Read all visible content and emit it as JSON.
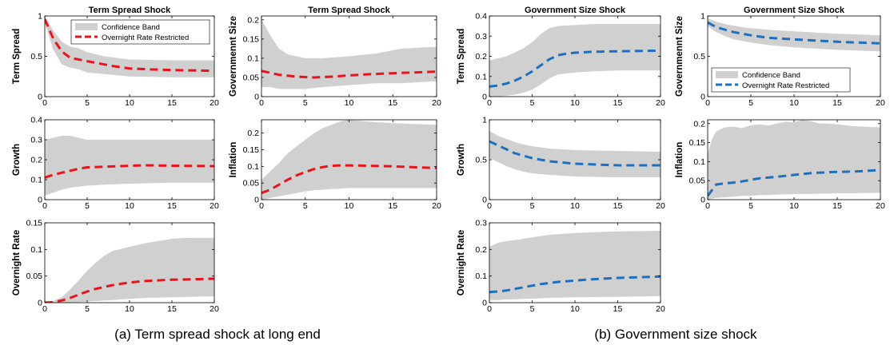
{
  "subcaptions": {
    "a": "(a)  Term spread shock at long end",
    "b": "(b)  Government size shock"
  },
  "colors": {
    "band": "#d0d0d0",
    "red": "#e8141b",
    "blue": "#1f6fbf",
    "axis": "#000000"
  },
  "chart_data": [
    {
      "id": "a1",
      "type": "area",
      "title": "Term Spread Shock",
      "xlabel": "",
      "ylabel": "Term Spread",
      "xlim": [
        0,
        20
      ],
      "ylim": [
        0,
        1
      ],
      "xticks": [
        0,
        5,
        10,
        15,
        20
      ],
      "yticks": [
        0,
        0.5,
        1
      ],
      "ytick_labels": [
        "0",
        "0.5",
        "1"
      ],
      "legend": {
        "placement": "top-right",
        "entries": [
          "Confidence Band",
          "Overnight Rate Restricted"
        ]
      },
      "series": [
        {
          "name": "Confidence Band",
          "kind": "band",
          "x": [
            0,
            1,
            2,
            3,
            4,
            5,
            7,
            10,
            15,
            20
          ],
          "upper": [
            1.0,
            0.82,
            0.68,
            0.62,
            0.6,
            0.55,
            0.5,
            0.46,
            0.45,
            0.45
          ],
          "lower": [
            0.92,
            0.58,
            0.4,
            0.36,
            0.34,
            0.3,
            0.28,
            0.25,
            0.24,
            0.24
          ]
        },
        {
          "name": "Overnight Rate Restricted",
          "kind": "line",
          "color": "red",
          "x": [
            0,
            1,
            2,
            3,
            4,
            5,
            6,
            8,
            10,
            12,
            15,
            20
          ],
          "y": [
            0.96,
            0.72,
            0.56,
            0.48,
            0.46,
            0.44,
            0.42,
            0.38,
            0.35,
            0.34,
            0.33,
            0.32
          ]
        }
      ]
    },
    {
      "id": "a2",
      "type": "area",
      "title": "Term Spread Shock",
      "xlabel": "",
      "ylabel": "Governmennt Size",
      "xlim": [
        0,
        20
      ],
      "ylim": [
        0,
        0.21
      ],
      "xticks": [
        0,
        5,
        10,
        15,
        20
      ],
      "yticks": [
        0,
        0.05,
        0.1,
        0.15,
        0.2
      ],
      "ytick_labels": [
        "0",
        "0.05",
        "0.1",
        "0.15",
        "0.2"
      ],
      "series": [
        {
          "name": "Confidence Band",
          "kind": "band",
          "x": [
            0,
            1,
            2,
            3,
            4,
            5,
            7,
            10,
            13,
            16,
            20
          ],
          "upper": [
            0.2,
            0.16,
            0.125,
            0.11,
            0.105,
            0.1,
            0.1,
            0.105,
            0.112,
            0.125,
            0.13
          ],
          "lower": [
            0.025,
            0.025,
            0.02,
            0.02,
            0.02,
            0.02,
            0.025,
            0.03,
            0.035,
            0.035,
            0.04
          ]
        },
        {
          "name": "Overnight Rate Restricted",
          "kind": "line",
          "color": "red",
          "x": [
            0,
            2,
            4,
            6,
            8,
            10,
            12,
            15,
            20
          ],
          "y": [
            0.067,
            0.057,
            0.052,
            0.05,
            0.052,
            0.055,
            0.058,
            0.061,
            0.065
          ]
        }
      ]
    },
    {
      "id": "a3",
      "type": "area",
      "title": "",
      "xlabel": "",
      "ylabel": "Growth",
      "xlim": [
        0,
        20
      ],
      "ylim": [
        0,
        0.4
      ],
      "xticks": [
        0,
        5,
        10,
        15,
        20
      ],
      "yticks": [
        0,
        0.1,
        0.2,
        0.3,
        0.4
      ],
      "ytick_labels": [
        "0",
        "0.1",
        "0.2",
        "0.3",
        "0.4"
      ],
      "series": [
        {
          "name": "Confidence Band",
          "kind": "band",
          "x": [
            0,
            1,
            2,
            3,
            4,
            5,
            7,
            10,
            15,
            20
          ],
          "upper": [
            0.3,
            0.31,
            0.32,
            0.32,
            0.31,
            0.3,
            0.3,
            0.3,
            0.3,
            0.3
          ],
          "lower": [
            0.02,
            0.035,
            0.05,
            0.06,
            0.065,
            0.07,
            0.075,
            0.08,
            0.085,
            0.085
          ]
        },
        {
          "name": "Overnight Rate Restricted",
          "kind": "line",
          "color": "red",
          "x": [
            0,
            1,
            2,
            3,
            4,
            5,
            7,
            10,
            12,
            15,
            20
          ],
          "y": [
            0.11,
            0.125,
            0.135,
            0.145,
            0.155,
            0.162,
            0.165,
            0.17,
            0.172,
            0.17,
            0.168
          ]
        }
      ]
    },
    {
      "id": "a4",
      "type": "area",
      "title": "",
      "xlabel": "",
      "ylabel": "Inflation",
      "xlim": [
        0,
        20
      ],
      "ylim": [
        0,
        0.24
      ],
      "xticks": [
        0,
        5,
        10,
        15,
        20
      ],
      "yticks": [
        0,
        0.05,
        0.1,
        0.15,
        0.2
      ],
      "ytick_labels": [
        "0",
        "0.05",
        "0.1",
        "0.15",
        "0.2"
      ],
      "series": [
        {
          "name": "Confidence Band",
          "kind": "band",
          "x": [
            0,
            1,
            2,
            3,
            4,
            5,
            6,
            7,
            8,
            9,
            10,
            12,
            15,
            20
          ],
          "upper": [
            0.06,
            0.085,
            0.11,
            0.14,
            0.16,
            0.18,
            0.2,
            0.215,
            0.225,
            0.235,
            0.24,
            0.235,
            0.23,
            0.225
          ],
          "lower": [
            0.0,
            0.005,
            0.01,
            0.015,
            0.02,
            0.025,
            0.028,
            0.03,
            0.032,
            0.033,
            0.035,
            0.035,
            0.035,
            0.035
          ]
        },
        {
          "name": "Overnight Rate Restricted",
          "kind": "line",
          "color": "red",
          "x": [
            0,
            1,
            2,
            3,
            4,
            5,
            6,
            7,
            8,
            9,
            10,
            12,
            15,
            20
          ],
          "y": [
            0.02,
            0.03,
            0.045,
            0.06,
            0.073,
            0.083,
            0.092,
            0.098,
            0.102,
            0.103,
            0.103,
            0.102,
            0.1,
            0.095
          ]
        }
      ]
    },
    {
      "id": "a5",
      "type": "area",
      "title": "",
      "xlabel": "",
      "ylabel": "Overnight Rate",
      "xlim": [
        0,
        20
      ],
      "ylim": [
        0,
        0.15
      ],
      "xticks": [
        0,
        5,
        10,
        15,
        20
      ],
      "yticks": [
        0,
        0.05,
        0.1,
        0.15
      ],
      "ytick_labels": [
        "0",
        "0.05",
        "0.1",
        "0.15"
      ],
      "series": [
        {
          "name": "Confidence Band",
          "kind": "band",
          "x": [
            0,
            1,
            2,
            3,
            4,
            5,
            6,
            7,
            8,
            10,
            12,
            15,
            17,
            20
          ],
          "upper": [
            0.0,
            0.003,
            0.01,
            0.025,
            0.042,
            0.06,
            0.075,
            0.088,
            0.097,
            0.105,
            0.112,
            0.12,
            0.122,
            0.122
          ],
          "lower": [
            0.0,
            0.0,
            0.0,
            0.0,
            0.001,
            0.002,
            0.003,
            0.004,
            0.005,
            0.007,
            0.009,
            0.01,
            0.011,
            0.012
          ]
        },
        {
          "name": "Overnight Rate Restricted",
          "kind": "line",
          "color": "red",
          "x": [
            0,
            1,
            2,
            3,
            4,
            5,
            6,
            8,
            10,
            12,
            15,
            20
          ],
          "y": [
            0.0,
            0.001,
            0.004,
            0.009,
            0.015,
            0.021,
            0.026,
            0.033,
            0.038,
            0.041,
            0.043,
            0.045
          ]
        }
      ]
    },
    {
      "id": "b1",
      "type": "area",
      "title": "Government Size Shock",
      "xlabel": "",
      "ylabel": "Term Spread",
      "xlim": [
        0,
        20
      ],
      "ylim": [
        0,
        0.4
      ],
      "xticks": [
        0,
        5,
        10,
        15,
        20
      ],
      "yticks": [
        0,
        0.1,
        0.2,
        0.3,
        0.4
      ],
      "ytick_labels": [
        "0",
        "0.1",
        "0.2",
        "0.3",
        "0.4"
      ],
      "series": [
        {
          "name": "Confidence Band",
          "kind": "band",
          "x": [
            0,
            1,
            2,
            3,
            4,
            5,
            6,
            7,
            8,
            10,
            12,
            15,
            20
          ],
          "upper": [
            0.18,
            0.19,
            0.2,
            0.22,
            0.24,
            0.27,
            0.31,
            0.34,
            0.35,
            0.355,
            0.36,
            0.36,
            0.36
          ],
          "lower": [
            0.0,
            0.0,
            0.005,
            0.01,
            0.02,
            0.035,
            0.06,
            0.09,
            0.11,
            0.12,
            0.125,
            0.13,
            0.13
          ]
        },
        {
          "name": "Overnight Rate Restricted",
          "kind": "line",
          "color": "blue",
          "x": [
            0,
            1,
            2,
            3,
            4,
            5,
            6,
            7,
            8,
            9,
            10,
            12,
            15,
            20
          ],
          "y": [
            0.05,
            0.055,
            0.065,
            0.08,
            0.1,
            0.125,
            0.155,
            0.185,
            0.205,
            0.213,
            0.218,
            0.222,
            0.225,
            0.228
          ]
        }
      ]
    },
    {
      "id": "b2",
      "type": "area",
      "title": "Government Size Shock",
      "xlabel": "",
      "ylabel": "Governmennt Size",
      "xlim": [
        0,
        20
      ],
      "ylim": [
        0,
        1
      ],
      "xticks": [
        0,
        5,
        10,
        15,
        20
      ],
      "yticks": [
        0,
        0.5,
        1
      ],
      "ytick_labels": [
        "0",
        "0.5",
        "1"
      ],
      "legend": {
        "placement": "bottom-left",
        "entries": [
          "Confidence Band",
          "Overnight Rate Restricted"
        ]
      },
      "series": [
        {
          "name": "Confidence Band",
          "kind": "band",
          "x": [
            0,
            1,
            2,
            3,
            4,
            5,
            7,
            10,
            15,
            20
          ],
          "upper": [
            0.97,
            0.93,
            0.9,
            0.88,
            0.86,
            0.85,
            0.83,
            0.81,
            0.78,
            0.76
          ],
          "lower": [
            0.87,
            0.8,
            0.75,
            0.71,
            0.69,
            0.67,
            0.64,
            0.61,
            0.58,
            0.56
          ]
        },
        {
          "name": "Overnight Rate Restricted",
          "kind": "line",
          "color": "blue",
          "x": [
            0,
            1,
            2,
            3,
            4,
            5,
            7,
            10,
            15,
            20
          ],
          "y": [
            0.92,
            0.86,
            0.83,
            0.8,
            0.78,
            0.76,
            0.73,
            0.71,
            0.68,
            0.66
          ]
        }
      ]
    },
    {
      "id": "b3",
      "type": "area",
      "title": "",
      "xlabel": "",
      "ylabel": "Growth",
      "xlim": [
        0,
        20
      ],
      "ylim": [
        0,
        1
      ],
      "xticks": [
        0,
        5,
        10,
        15,
        20
      ],
      "yticks": [
        0,
        0.5,
        1
      ],
      "ytick_labels": [
        "0",
        "0.5",
        "1"
      ],
      "series": [
        {
          "name": "Confidence Band",
          "kind": "band",
          "x": [
            0,
            1,
            2,
            3,
            4,
            5,
            7,
            10,
            15,
            20
          ],
          "upper": [
            0.86,
            0.8,
            0.76,
            0.72,
            0.69,
            0.67,
            0.64,
            0.62,
            0.61,
            0.6
          ],
          "lower": [
            0.52,
            0.47,
            0.42,
            0.38,
            0.35,
            0.33,
            0.31,
            0.29,
            0.28,
            0.28
          ]
        },
        {
          "name": "Overnight Rate Restricted",
          "kind": "line",
          "color": "blue",
          "x": [
            0,
            1,
            2,
            3,
            4,
            5,
            7,
            10,
            15,
            20
          ],
          "y": [
            0.73,
            0.68,
            0.63,
            0.58,
            0.55,
            0.52,
            0.48,
            0.45,
            0.43,
            0.43
          ]
        }
      ]
    },
    {
      "id": "b4",
      "type": "area",
      "title": "",
      "xlabel": "",
      "ylabel": "Inflation",
      "xlim": [
        0,
        20
      ],
      "ylim": [
        0,
        0.21
      ],
      "xticks": [
        0,
        5,
        10,
        15,
        20
      ],
      "yticks": [
        0,
        0.05,
        0.1,
        0.15,
        0.2
      ],
      "ytick_labels": [
        "0",
        "0.05",
        "0.1",
        "0.15",
        "0.2"
      ],
      "series": [
        {
          "name": "Confidence Band",
          "kind": "band",
          "x": [
            0,
            0.5,
            1,
            2,
            3,
            4,
            5,
            6,
            7,
            8,
            9,
            10,
            11,
            12,
            13,
            14,
            15,
            17,
            20
          ],
          "upper": [
            0.12,
            0.16,
            0.18,
            0.19,
            0.192,
            0.188,
            0.196,
            0.198,
            0.195,
            0.2,
            0.205,
            0.203,
            0.21,
            0.206,
            0.2,
            0.2,
            0.198,
            0.193,
            0.19
          ],
          "lower": [
            0.0,
            0.003,
            0.005,
            0.006,
            0.008,
            0.01,
            0.01,
            0.012,
            0.012,
            0.013,
            0.014,
            0.015,
            0.015,
            0.015,
            0.016,
            0.016,
            0.017,
            0.017,
            0.018
          ]
        },
        {
          "name": "Overnight Rate Restricted",
          "kind": "line",
          "color": "blue",
          "x": [
            0,
            1,
            2,
            3,
            4,
            5,
            6,
            8,
            10,
            12,
            15,
            17,
            20
          ],
          "y": [
            0.01,
            0.04,
            0.043,
            0.045,
            0.048,
            0.052,
            0.056,
            0.06,
            0.065,
            0.07,
            0.073,
            0.074,
            0.078
          ]
        }
      ]
    },
    {
      "id": "b5",
      "type": "area",
      "title": "",
      "xlabel": "",
      "ylabel": "Overnight Rate",
      "xlim": [
        0,
        20
      ],
      "ylim": [
        0,
        0.3
      ],
      "xticks": [
        0,
        5,
        10,
        15,
        20
      ],
      "yticks": [
        0,
        0.1,
        0.2,
        0.3
      ],
      "ytick_labels": [
        "0",
        "0.1",
        "0.2",
        "0.3"
      ],
      "series": [
        {
          "name": "Confidence Band",
          "kind": "band",
          "x": [
            0,
            1,
            2,
            3,
            4,
            5,
            7,
            10,
            15,
            20
          ],
          "upper": [
            0.21,
            0.225,
            0.232,
            0.235,
            0.24,
            0.245,
            0.255,
            0.262,
            0.268,
            0.27
          ],
          "lower": [
            0.01,
            0.01,
            0.012,
            0.013,
            0.014,
            0.015,
            0.018,
            0.02,
            0.022,
            0.025
          ]
        },
        {
          "name": "Overnight Rate Restricted",
          "kind": "line",
          "color": "blue",
          "x": [
            0,
            1,
            2,
            3,
            4,
            5,
            6,
            8,
            10,
            12,
            15,
            20
          ],
          "y": [
            0.04,
            0.042,
            0.046,
            0.052,
            0.058,
            0.064,
            0.07,
            0.078,
            0.083,
            0.088,
            0.093,
            0.098
          ]
        }
      ]
    }
  ]
}
